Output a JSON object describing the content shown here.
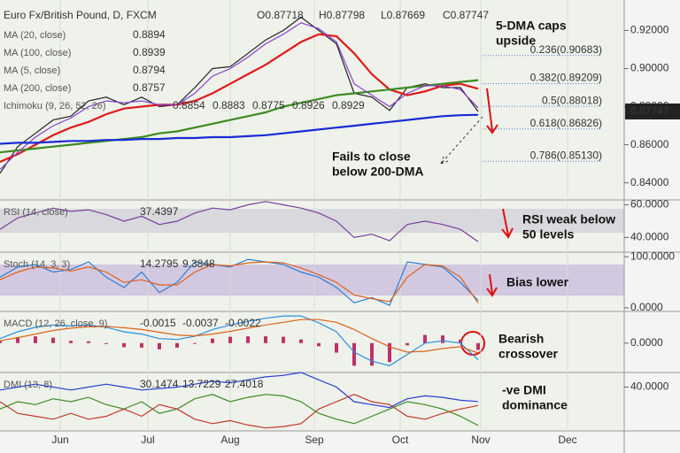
{
  "chart_data": [
    {
      "type": "line",
      "title": "Euro Fx/British Pound, D, FXCM",
      "ohlc": [
        "O0.87718",
        "H0.87798",
        "L0.87669",
        "C0.87747"
      ],
      "x": [
        0,
        1,
        2,
        3,
        4,
        5,
        6,
        7,
        8,
        9,
        10,
        11,
        12,
        13,
        14,
        15,
        16,
        17,
        18,
        19,
        20,
        21,
        22,
        23,
        24,
        25,
        26,
        27
      ],
      "xlim": [
        0,
        35.25
      ],
      "xticks": [
        {
          "value": 3.4,
          "label": "Jun"
        },
        {
          "value": 8.35,
          "label": "Jul"
        },
        {
          "value": 13,
          "label": "Aug"
        },
        {
          "value": 17.75,
          "label": "Sep"
        },
        {
          "value": 22.6,
          "label": "Oct"
        },
        {
          "value": 27.15,
          "label": "Nov"
        },
        {
          "value": 32.05,
          "label": "Dec"
        }
      ],
      "ylim": [
        0.831,
        0.936
      ],
      "yticks": [
        {
          "value": 0.92,
          "label": "0.92000"
        },
        {
          "value": 0.9,
          "label": "0.90000"
        },
        {
          "value": 0.88,
          "label": "0.88000"
        },
        {
          "value": 0.86,
          "label": "0.86000"
        },
        {
          "value": 0.84,
          "label": "0.84000"
        }
      ],
      "series": [
        {
          "color": "#222222",
          "values": [
            0.845,
            0.859,
            0.866,
            0.873,
            0.875,
            0.883,
            0.885,
            0.881,
            0.885,
            0.88,
            0.881,
            0.89,
            0.9,
            0.901,
            0.908,
            0.915,
            0.92,
            0.927,
            0.92,
            0.913,
            0.887,
            0.885,
            0.878,
            0.89,
            0.892,
            0.89,
            0.89,
            0.87747
          ]
        },
        {
          "name": "MA (20, close)",
          "value_label": "0.8894",
          "color": "#e01a1a",
          "values": [
            0.851,
            0.855,
            0.86,
            0.865,
            0.869,
            0.872,
            0.876,
            0.879,
            0.88,
            0.881,
            0.881,
            0.883,
            0.887,
            0.892,
            0.897,
            0.902,
            0.908,
            0.914,
            0.918,
            0.917,
            0.908,
            0.897,
            0.889,
            0.886,
            0.888,
            0.891,
            0.892,
            0.8894
          ]
        },
        {
          "name": "MA (100, close)",
          "value_label": "0.8939",
          "color": "#3f8a22",
          "values": [
            0.856,
            0.857,
            0.858,
            0.859,
            0.86,
            0.861,
            0.862,
            0.863,
            0.864,
            0.866,
            0.867,
            0.869,
            0.871,
            0.873,
            0.875,
            0.877,
            0.88,
            0.882,
            0.884,
            0.886,
            0.887,
            0.888,
            0.889,
            0.89,
            0.891,
            0.892,
            0.893,
            0.8939
          ]
        },
        {
          "name": "MA (5, close)",
          "value_label": "0.8794",
          "color": "#8a3fd0",
          "values": [
            0.847,
            0.856,
            0.864,
            0.87,
            0.874,
            0.88,
            0.883,
            0.882,
            0.883,
            0.881,
            0.881,
            0.887,
            0.896,
            0.9,
            0.906,
            0.913,
            0.918,
            0.924,
            0.921,
            0.914,
            0.892,
            0.886,
            0.88,
            0.887,
            0.891,
            0.891,
            0.889,
            0.8794
          ]
        },
        {
          "name": "MA (200, close)",
          "value_label": "0.8757",
          "color": "#1a2bd6",
          "values": [
            0.8605,
            0.861,
            0.861,
            0.8615,
            0.862,
            0.862,
            0.8625,
            0.8625,
            0.863,
            0.863,
            0.8635,
            0.8635,
            0.864,
            0.864,
            0.8645,
            0.865,
            0.866,
            0.867,
            0.868,
            0.869,
            0.87,
            0.871,
            0.872,
            0.873,
            0.874,
            0.875,
            0.8755,
            0.8757
          ]
        }
      ],
      "indicators": [
        {
          "name": "Ichimoku (9, 26, 52, 26)",
          "values": [
            "0.8854",
            "0.8883",
            "0.8775",
            "0.8926",
            "0.8929"
          ],
          "colors": [
            "#2a6fd6",
            "#c0392b",
            "#3f8a22",
            "#3f8a22",
            "#c0392b"
          ]
        }
      ],
      "price_label": {
        "value": 0.87747,
        "label": "0.87747"
      },
      "fib_levels": [
        {
          "value": 0.90683,
          "label": "0.236(0.90683)"
        },
        {
          "value": 0.89209,
          "label": "0.382(0.89209)"
        },
        {
          "value": 0.88018,
          "label": "0.5(0.88018)"
        },
        {
          "value": 0.86826,
          "label": "0.618(0.86826)"
        },
        {
          "value": 0.8513,
          "label": "0.786(0.85130)"
        }
      ],
      "annotations": [
        [
          "5-DMA caps",
          "upside"
        ],
        [
          "Fails to close",
          "below 200-DMA"
        ]
      ]
    },
    {
      "type": "line",
      "title": "RSI (14, close)",
      "x": [
        0,
        1,
        2,
        3,
        4,
        5,
        6,
        7,
        8,
        9,
        10,
        11,
        12,
        13,
        14,
        15,
        16,
        17,
        18,
        19,
        20,
        21,
        22,
        23,
        24,
        25,
        26,
        27
      ],
      "xlim": [
        0,
        35.25
      ],
      "ylim": [
        31,
        63
      ],
      "yticks": [
        {
          "value": 60,
          "label": "60.0000"
        },
        {
          "value": 40,
          "label": "40.0000"
        }
      ],
      "series": [
        {
          "value_label": "37.4397",
          "color": "#7a3fa0",
          "values": [
            45,
            52,
            55,
            58,
            56,
            57,
            54,
            50,
            53,
            48,
            50,
            55,
            58,
            57,
            60,
            62,
            60,
            58,
            55,
            50,
            40,
            42,
            38,
            48,
            50,
            48,
            45,
            37.4397
          ]
        }
      ],
      "annotations": [
        [
          "RSI weak below",
          "50 levels"
        ]
      ]
    },
    {
      "type": "line",
      "title": "Stoch (14, 3, 3)",
      "x": [
        0,
        1,
        2,
        3,
        4,
        5,
        6,
        7,
        8,
        9,
        10,
        11,
        12,
        13,
        14,
        15,
        16,
        17,
        18,
        19,
        20,
        21,
        22,
        23,
        24,
        25,
        26,
        27
      ],
      "xlim": [
        0,
        35.25
      ],
      "ylim": [
        -7,
        109
      ],
      "yticks": [
        {
          "value": 100,
          "label": "100.0000"
        },
        {
          "value": 0,
          "label": "0.0000"
        }
      ],
      "series": [
        {
          "value_label": "14.2795",
          "color": "#2a7fd6",
          "values": [
            60,
            80,
            85,
            70,
            75,
            90,
            60,
            40,
            70,
            30,
            50,
            90,
            85,
            80,
            95,
            90,
            85,
            70,
            60,
            40,
            10,
            20,
            5,
            90,
            85,
            80,
            50,
            14.2795
          ]
        },
        {
          "value_label": "9.3848",
          "color": "#e0601a",
          "values": [
            55,
            70,
            80,
            78,
            72,
            80,
            70,
            50,
            55,
            45,
            45,
            70,
            85,
            82,
            88,
            90,
            88,
            78,
            65,
            50,
            25,
            18,
            12,
            60,
            85,
            82,
            60,
            9.3848
          ]
        }
      ],
      "annotations": [
        [
          "Bias lower"
        ]
      ]
    },
    {
      "type": "line",
      "title": "MACD (12, 26, close, 9)",
      "x": [
        0,
        1,
        2,
        3,
        4,
        5,
        6,
        7,
        8,
        9,
        10,
        11,
        12,
        13,
        14,
        15,
        16,
        17,
        18,
        19,
        20,
        21,
        22,
        23,
        24,
        25,
        26,
        27
      ],
      "xlim": [
        0,
        35.25
      ],
      "ylim": [
        -0.0065,
        0.007
      ],
      "yticks": [
        {
          "value": 0,
          "label": "0.0000"
        }
      ],
      "series": [
        {
          "kind": "bar",
          "value_label": "-0.0015",
          "color": "#c0306a",
          "values": [
            0.0005,
            0.0013,
            0.0015,
            0.0012,
            0.0005,
            0.0004,
            -0.0002,
            -0.0009,
            -0.001,
            -0.0014,
            -0.001,
            -0.0001,
            0.001,
            0.0014,
            0.0015,
            0.0015,
            0.0014,
            0.0008,
            -0.0007,
            -0.0021,
            -0.005,
            -0.005,
            -0.0042,
            -0.0005,
            0.0018,
            0.0017,
            0.0008,
            -0.0015
          ]
        },
        {
          "value_label": "-0.0037",
          "color": "#2a8fe0",
          "values": [
            0.001,
            0.0025,
            0.0035,
            0.004,
            0.0038,
            0.004,
            0.0035,
            0.0025,
            0.002,
            0.001,
            0.0008,
            0.0015,
            0.003,
            0.004,
            0.0048,
            0.0055,
            0.006,
            0.006,
            0.0045,
            0.0025,
            -0.002,
            -0.004,
            -0.005,
            -0.0025,
            0,
            0.0005,
            0,
            -0.0037
          ]
        },
        {
          "value_label": "-0.0022",
          "color": "#e0601a",
          "values": [
            0.0005,
            0.0012,
            0.002,
            0.0028,
            0.0033,
            0.0036,
            0.0037,
            0.0034,
            0.003,
            0.0024,
            0.0018,
            0.0016,
            0.002,
            0.0026,
            0.0033,
            0.004,
            0.0046,
            0.0052,
            0.0052,
            0.0046,
            0.003,
            0.001,
            -0.0008,
            -0.002,
            -0.0018,
            -0.0012,
            -0.0008,
            -0.0022
          ]
        }
      ],
      "annotations": [
        [
          "Bearish",
          "crossover"
        ]
      ]
    },
    {
      "type": "line",
      "title": "DMI (13, 8)",
      "x": [
        0,
        1,
        2,
        3,
        4,
        5,
        6,
        7,
        8,
        9,
        10,
        11,
        12,
        13,
        14,
        15,
        16,
        17,
        18,
        19,
        20,
        21,
        22,
        23,
        24,
        25,
        26,
        27
      ],
      "xlim": [
        0,
        35.25
      ],
      "ylim": [
        10,
        50
      ],
      "yticks": [
        {
          "value": 40,
          "label": "40.0000"
        }
      ],
      "series": [
        {
          "value_label": "30.1474",
          "color": "#2a3fd6",
          "values": [
            38,
            40,
            42,
            40,
            38,
            40,
            42,
            40,
            38,
            39,
            40,
            42,
            44,
            43,
            45,
            47,
            48,
            50,
            45,
            40,
            30,
            28,
            26,
            32,
            34,
            33,
            31,
            30.1474
          ]
        },
        {
          "value_label": "13.7229",
          "color": "#3f8a22",
          "values": [
            25,
            30,
            28,
            32,
            30,
            33,
            28,
            25,
            30,
            22,
            25,
            32,
            35,
            30,
            33,
            35,
            34,
            30,
            22,
            18,
            15,
            20,
            25,
            30,
            28,
            25,
            20,
            13.7229
          ]
        },
        {
          "value_label": "27.4018",
          "color": "#c0392b",
          "values": [
            30,
            22,
            20,
            18,
            22,
            18,
            20,
            25,
            20,
            28,
            25,
            18,
            15,
            17,
            14,
            12,
            13,
            15,
            25,
            30,
            35,
            30,
            28,
            20,
            18,
            22,
            25,
            27.4018
          ]
        }
      ],
      "annotations": [
        [
          "-ve DMI",
          "dominance"
        ]
      ]
    }
  ]
}
